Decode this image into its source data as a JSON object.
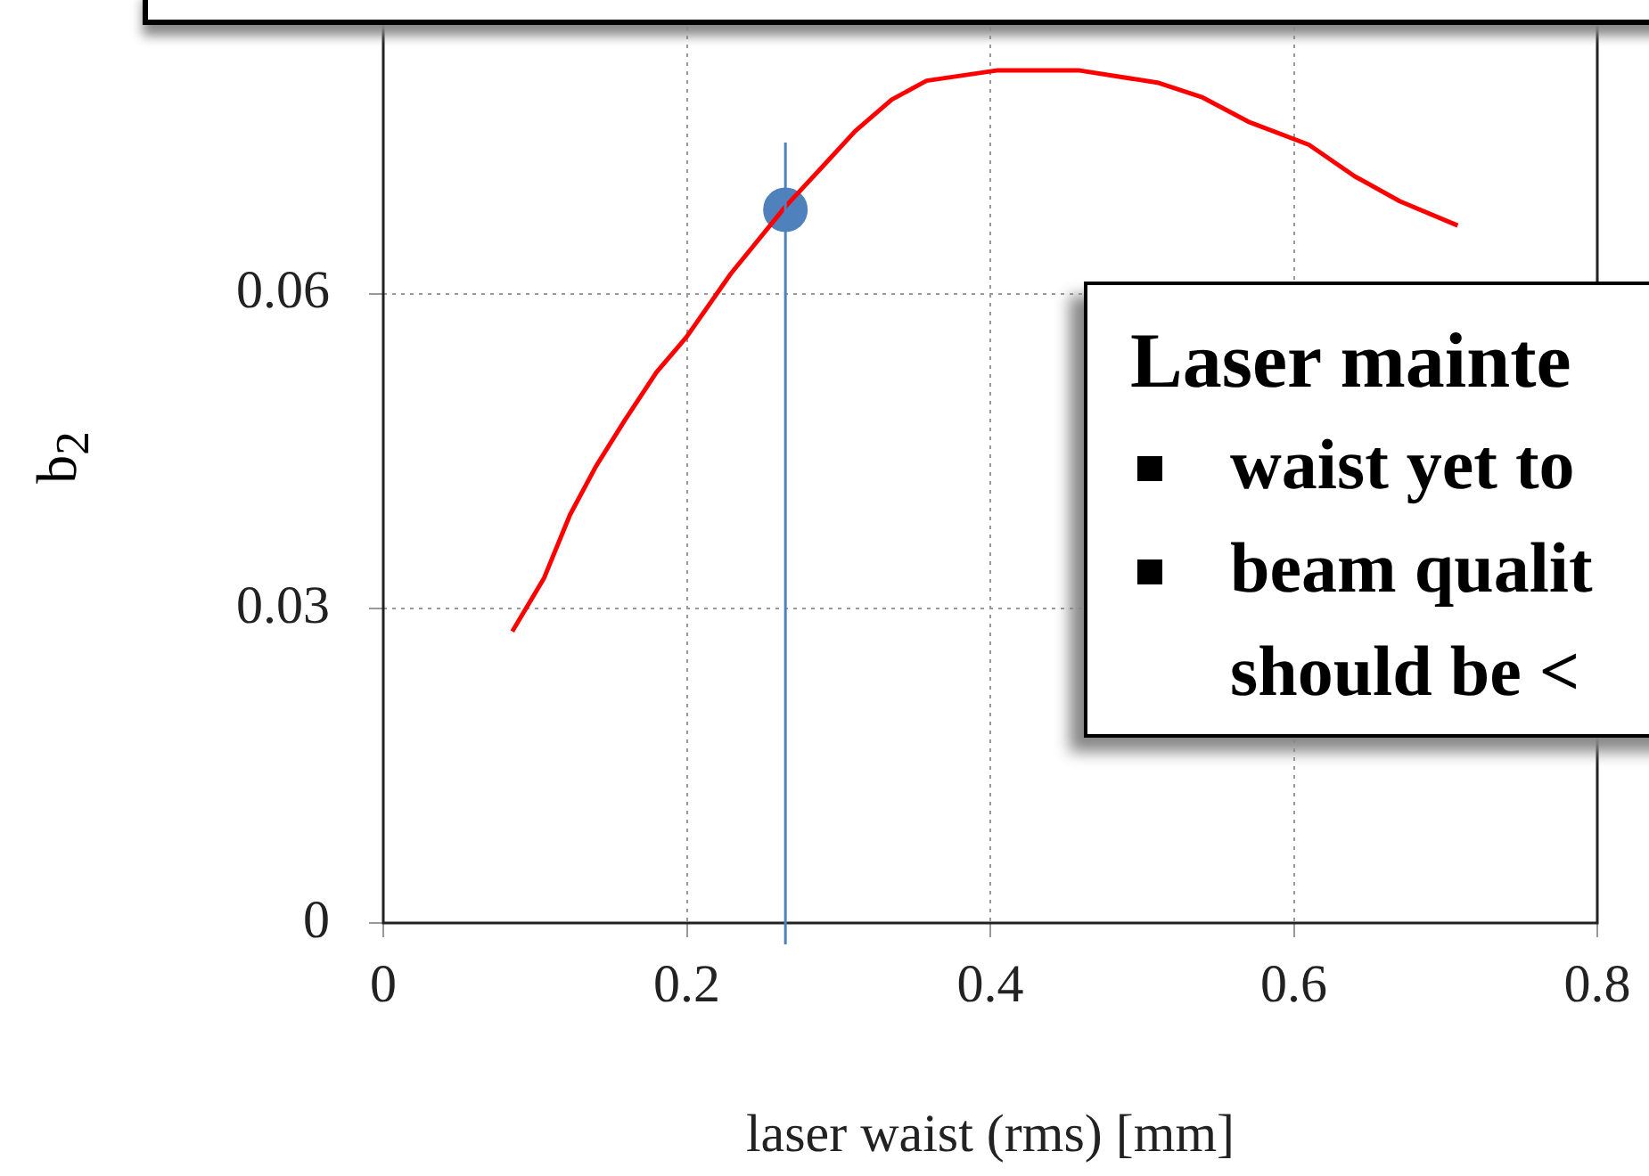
{
  "chart_data": {
    "type": "line",
    "xlabel": "laser waist (rms) [mm]",
    "ylabel": "b$_{2}$",
    "xlim": [
      0,
      0.8
    ],
    "xticks": [
      0,
      0.2,
      0.4,
      0.6,
      0.8
    ],
    "ylim": [
      0,
      0.088
    ],
    "yticks": [
      0,
      0.03,
      0.06
    ],
    "grid": true,
    "line_style": "solid",
    "series": [
      {
        "marker": "none",
        "color": "#ff0000",
        "x": [
          0.085,
          0.106,
          0.123,
          0.14,
          0.159,
          0.18,
          0.2,
          0.229,
          0.265,
          0.29,
          0.311,
          0.335,
          0.358,
          0.405,
          0.458,
          0.511,
          0.54,
          0.57,
          0.61,
          0.64,
          0.67,
          0.708
        ],
        "values": [
          0.0278,
          0.0329,
          0.0389,
          0.0435,
          0.0479,
          0.0525,
          0.0559,
          0.0619,
          0.0683,
          0.0722,
          0.0755,
          0.0785,
          0.0803,
          0.0813,
          0.0813,
          0.0801,
          0.0787,
          0.0764,
          0.0742,
          0.0712,
          0.0688,
          0.0665
        ]
      },
      {
        "type": "scatter",
        "marker": "circle",
        "color": "#4f81bd",
        "x": [
          0.265
        ],
        "values": [
          0.068
        ]
      }
    ],
    "ref_lines": [
      {
        "axis": "x",
        "value": 0.265,
        "color": "#4f81bd"
      }
    ],
    "annotations": [
      "Laser mainte",
      "waist yet to",
      "beam qualit\nshould be <"
    ]
  }
}
